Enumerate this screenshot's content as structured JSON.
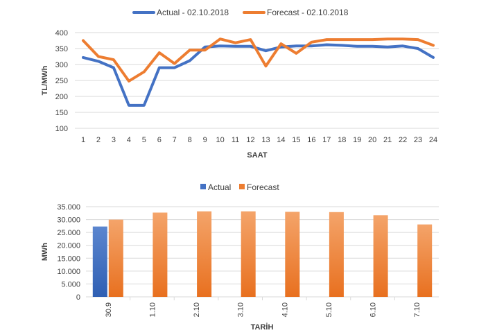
{
  "chart_data": [
    {
      "type": "line",
      "title": "",
      "xlabel": "SAAT",
      "ylabel": "TL/MWh",
      "ylim": [
        100,
        400
      ],
      "yticks": [
        "100",
        "150",
        "200",
        "250",
        "300",
        "350",
        "400"
      ],
      "grid": true,
      "legend_position": "top",
      "categories": [
        "1",
        "2",
        "3",
        "4",
        "5",
        "6",
        "7",
        "8",
        "9",
        "10",
        "11",
        "12",
        "13",
        "14",
        "15",
        "16",
        "17",
        "18",
        "19",
        "20",
        "21",
        "22",
        "23",
        "24"
      ],
      "series": [
        {
          "name": "Actual - 02.10.2018",
          "color": "#4472C4",
          "values": [
            322,
            310,
            290,
            172,
            172,
            290,
            290,
            312,
            355,
            358,
            357,
            357,
            343,
            355,
            358,
            358,
            362,
            360,
            357,
            357,
            355,
            358,
            350,
            322
          ]
        },
        {
          "name": "Forecast - 02.10.2018",
          "color": "#ED7D31",
          "values": [
            375,
            325,
            315,
            248,
            277,
            337,
            303,
            345,
            345,
            380,
            368,
            378,
            295,
            365,
            335,
            370,
            378,
            378,
            378,
            378,
            380,
            380,
            378,
            360
          ]
        }
      ]
    },
    {
      "type": "bar",
      "title": "",
      "xlabel": "TARİH",
      "ylabel": "MWh",
      "ylim": [
        0,
        35000
      ],
      "yticks": [
        "0",
        "5.000",
        "10.000",
        "15.000",
        "20.000",
        "25.000",
        "30.000",
        "35.000"
      ],
      "grid": true,
      "legend_position": "top",
      "categories": [
        "30.9",
        "1.10",
        "2.10",
        "3.10",
        "4.10",
        "5.10",
        "6.10",
        "7.10"
      ],
      "series": [
        {
          "name": "Actual",
          "color": "#4472C4",
          "values": [
            27300,
            null,
            null,
            null,
            null,
            null,
            null,
            null
          ]
        },
        {
          "name": "Forecast",
          "color": "#ED7D31",
          "values": [
            30000,
            32700,
            33200,
            33200,
            33000,
            32900,
            31700,
            28100
          ]
        }
      ]
    }
  ]
}
